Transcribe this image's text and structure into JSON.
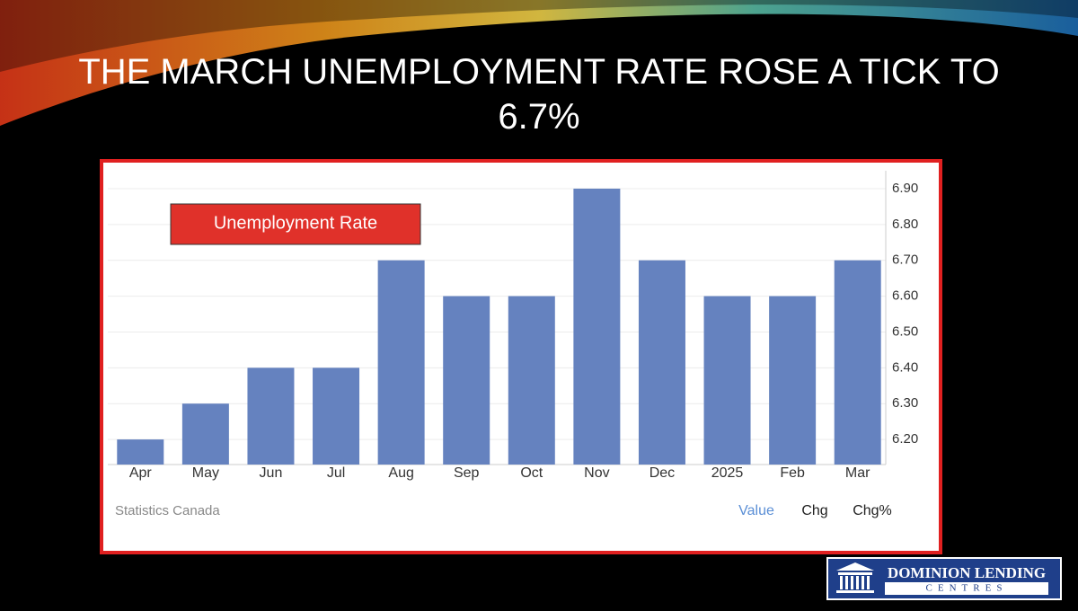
{
  "slide": {
    "title": "THE MARCH UNEMPLOYMENT RATE ROSE A TICK TO 6.7%"
  },
  "chart_data": {
    "type": "bar",
    "title": "Unemployment Rate",
    "categories": [
      "Apr",
      "May",
      "Jun",
      "Jul",
      "Aug",
      "Sep",
      "Oct",
      "Nov",
      "Dec",
      "2025",
      "Feb",
      "Mar"
    ],
    "values": [
      6.2,
      6.3,
      6.4,
      6.4,
      6.7,
      6.6,
      6.6,
      6.9,
      6.7,
      6.6,
      6.6,
      6.7
    ],
    "color": "#6582bf",
    "ylim": [
      6.13,
      6.95
    ],
    "yticks": [
      {
        "value": 6.2,
        "label": "6.20"
      },
      {
        "value": 6.3,
        "label": "6.30"
      },
      {
        "value": 6.4,
        "label": "6.40"
      },
      {
        "value": 6.5,
        "label": "6.50"
      },
      {
        "value": 6.6,
        "label": "6.60"
      },
      {
        "value": 6.7,
        "label": "6.70"
      },
      {
        "value": 6.8,
        "label": "6.80"
      },
      {
        "value": 6.9,
        "label": "6.90"
      }
    ],
    "grid": true,
    "source": "Statistics Canada",
    "tabs": [
      "Value",
      "Chg",
      "Chg%"
    ]
  },
  "footer": {
    "logo_line1": "DOMINION LENDING",
    "logo_line2": "CENTRES"
  }
}
